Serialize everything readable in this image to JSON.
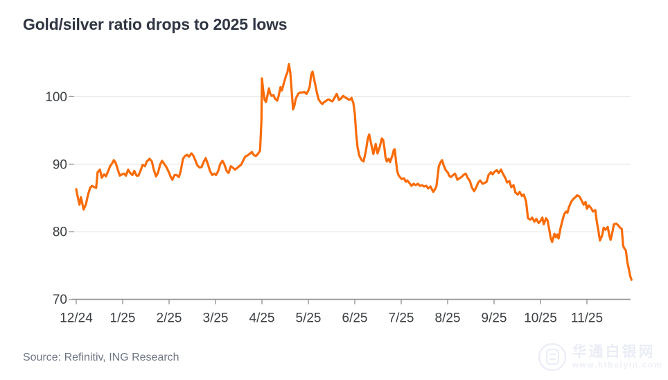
{
  "header": {
    "title": "Gold/silver ratio drops to 2025 lows"
  },
  "footer": {
    "source": "Source: Refinitiv, ING Research"
  },
  "watermark": {
    "logo": "circle-monogram-icon",
    "site_name": "华通白银网",
    "site_url": "www.htbaiyin.com"
  },
  "colors": {
    "line": "#f96b07",
    "title_text": "#2f3542",
    "tick_text": "#3c4043",
    "grid": "#e0e0e0",
    "axis": "#9b9b9b",
    "source_text": "#6e7684",
    "watermark": "#eaedf6"
  },
  "chart_data": {
    "type": "line",
    "title": "Gold/silver ratio drops to 2025 lows",
    "series_name": "Gold/silver ratio",
    "x_unit": "months since December 2024",
    "grid": true,
    "legend": "none",
    "y_ticks": [
      70,
      80,
      90,
      100
    ],
    "ylim": [
      70,
      106.5
    ],
    "x_tick_labels": [
      "12/24",
      "1/25",
      "2/25",
      "3/25",
      "4/25",
      "5/25",
      "6/25",
      "7/25",
      "8/25",
      "9/25",
      "10/25",
      "11/25"
    ],
    "points": [
      [
        0,
        86.3
      ],
      [
        0.04,
        84.9
      ],
      [
        0.07,
        84
      ],
      [
        0.1,
        85.1
      ],
      [
        0.13,
        84.2
      ],
      [
        0.16,
        83.3
      ],
      [
        0.21,
        84.1
      ],
      [
        0.25,
        85.4
      ],
      [
        0.3,
        86.5
      ],
      [
        0.34,
        86.8
      ],
      [
        0.39,
        86.6
      ],
      [
        0.43,
        86.5
      ],
      [
        0.46,
        88.8
      ],
      [
        0.51,
        89.2
      ],
      [
        0.55,
        88
      ],
      [
        0.6,
        88.5
      ],
      [
        0.64,
        88.2
      ],
      [
        0.69,
        89
      ],
      [
        0.73,
        89.7
      ],
      [
        0.78,
        90.2
      ],
      [
        0.81,
        90.6
      ],
      [
        0.85,
        90.2
      ],
      [
        0.9,
        89.1
      ],
      [
        0.94,
        88.3
      ],
      [
        0.99,
        88.5
      ],
      [
        1.03,
        88.6
      ],
      [
        1.07,
        88.3
      ],
      [
        1.12,
        89.2
      ],
      [
        1.16,
        88.7
      ],
      [
        1.21,
        88.4
      ],
      [
        1.25,
        89
      ],
      [
        1.3,
        88.3
      ],
      [
        1.34,
        88.3
      ],
      [
        1.39,
        89.1
      ],
      [
        1.43,
        89.9
      ],
      [
        1.48,
        89.7
      ],
      [
        1.52,
        90.4
      ],
      [
        1.58,
        90.8
      ],
      [
        1.63,
        90.4
      ],
      [
        1.67,
        89.2
      ],
      [
        1.72,
        88.2
      ],
      [
        1.76,
        88.7
      ],
      [
        1.81,
        90
      ],
      [
        1.85,
        90.5
      ],
      [
        1.9,
        90
      ],
      [
        1.94,
        89.6
      ],
      [
        1.99,
        88.9
      ],
      [
        2.03,
        88.2
      ],
      [
        2.07,
        87.7
      ],
      [
        2.12,
        88.4
      ],
      [
        2.16,
        88.4
      ],
      [
        2.21,
        88.1
      ],
      [
        2.25,
        89
      ],
      [
        2.3,
        90.8
      ],
      [
        2.34,
        91.2
      ],
      [
        2.39,
        91.4
      ],
      [
        2.43,
        91.1
      ],
      [
        2.48,
        91.6
      ],
      [
        2.52,
        91.3
      ],
      [
        2.57,
        90.5
      ],
      [
        2.61,
        89.8
      ],
      [
        2.66,
        89.5
      ],
      [
        2.7,
        89.6
      ],
      [
        2.75,
        90.4
      ],
      [
        2.79,
        90.9
      ],
      [
        2.84,
        89.9
      ],
      [
        2.88,
        89
      ],
      [
        2.93,
        88.4
      ],
      [
        2.97,
        88.6
      ],
      [
        3.01,
        88.4
      ],
      [
        3.06,
        89
      ],
      [
        3.1,
        90
      ],
      [
        3.15,
        90.5
      ],
      [
        3.19,
        90
      ],
      [
        3.24,
        89
      ],
      [
        3.28,
        88.7
      ],
      [
        3.33,
        89.7
      ],
      [
        3.37,
        89.5
      ],
      [
        3.42,
        89.2
      ],
      [
        3.46,
        89.4
      ],
      [
        3.51,
        89.7
      ],
      [
        3.55,
        89.9
      ],
      [
        3.6,
        90.6
      ],
      [
        3.64,
        91.1
      ],
      [
        3.69,
        91.3
      ],
      [
        3.73,
        91.5
      ],
      [
        3.78,
        91.8
      ],
      [
        3.82,
        91.4
      ],
      [
        3.87,
        91.2
      ],
      [
        3.91,
        91.5
      ],
      [
        3.96,
        92
      ],
      [
        3.99,
        96.5
      ],
      [
        4,
        102.7
      ],
      [
        4.03,
        100.8
      ],
      [
        4.06,
        99.5
      ],
      [
        4.09,
        99.2
      ],
      [
        4.12,
        100.2
      ],
      [
        4.15,
        101.2
      ],
      [
        4.18,
        100.4
      ],
      [
        4.21,
        100.1
      ],
      [
        4.25,
        100.2
      ],
      [
        4.28,
        99.7
      ],
      [
        4.33,
        99.4
      ],
      [
        4.36,
        100.1
      ],
      [
        4.4,
        101.4
      ],
      [
        4.43,
        100.9
      ],
      [
        4.48,
        102.2
      ],
      [
        4.52,
        103.1
      ],
      [
        4.55,
        103.6
      ],
      [
        4.58,
        104.8
      ],
      [
        4.61,
        103.6
      ],
      [
        4.64,
        100.9
      ],
      [
        4.67,
        98.1
      ],
      [
        4.7,
        98.7
      ],
      [
        4.73,
        99.7
      ],
      [
        4.78,
        100.4
      ],
      [
        4.82,
        100.6
      ],
      [
        4.87,
        100.6
      ],
      [
        4.91,
        100.7
      ],
      [
        4.96,
        100.4
      ],
      [
        5,
        100.9
      ],
      [
        5.03,
        101.5
      ],
      [
        5.06,
        103.2
      ],
      [
        5.09,
        103.7
      ],
      [
        5.13,
        102.4
      ],
      [
        5.18,
        100.7
      ],
      [
        5.22,
        99.6
      ],
      [
        5.27,
        99.1
      ],
      [
        5.3,
        98.9
      ],
      [
        5.34,
        99.2
      ],
      [
        5.39,
        99.4
      ],
      [
        5.43,
        99.6
      ],
      [
        5.48,
        99.4
      ],
      [
        5.52,
        99.3
      ],
      [
        5.57,
        99.9
      ],
      [
        5.61,
        100.4
      ],
      [
        5.66,
        99.5
      ],
      [
        5.7,
        99.7
      ],
      [
        5.75,
        100.1
      ],
      [
        5.79,
        99.9
      ],
      [
        5.84,
        99.7
      ],
      [
        5.88,
        99.5
      ],
      [
        5.93,
        99.8
      ],
      [
        5.97,
        99
      ],
      [
        6,
        97.5
      ],
      [
        6.03,
        94.5
      ],
      [
        6.06,
        92.5
      ],
      [
        6.1,
        91.2
      ],
      [
        6.15,
        90.6
      ],
      [
        6.19,
        90.4
      ],
      [
        6.24,
        92
      ],
      [
        6.28,
        93.8
      ],
      [
        6.31,
        94.4
      ],
      [
        6.36,
        92.8
      ],
      [
        6.4,
        91.5
      ],
      [
        6.45,
        93
      ],
      [
        6.49,
        91.6
      ],
      [
        6.54,
        92.6
      ],
      [
        6.58,
        93.8
      ],
      [
        6.61,
        93.6
      ],
      [
        6.64,
        92.3
      ],
      [
        6.66,
        91.1
      ],
      [
        6.69,
        90.4
      ],
      [
        6.73,
        90.8
      ],
      [
        6.76,
        90.3
      ],
      [
        6.81,
        91.3
      ],
      [
        6.84,
        92.1
      ],
      [
        6.86,
        92.2
      ],
      [
        6.91,
        89.1
      ],
      [
        6.94,
        88.4
      ],
      [
        6.97,
        88.1
      ],
      [
        7.01,
        87.8
      ],
      [
        7.06,
        87.9
      ],
      [
        7.1,
        87.4
      ],
      [
        7.13,
        87.6
      ],
      [
        7.19,
        87.1
      ],
      [
        7.22,
        86.8
      ],
      [
        7.27,
        87.1
      ],
      [
        7.31,
        86.9
      ],
      [
        7.36,
        87.1
      ],
      [
        7.4,
        86.8
      ],
      [
        7.45,
        86.9
      ],
      [
        7.49,
        86.7
      ],
      [
        7.54,
        86.8
      ],
      [
        7.58,
        86.4
      ],
      [
        7.63,
        86.7
      ],
      [
        7.69,
        85.9
      ],
      [
        7.73,
        86.3
      ],
      [
        7.76,
        86.8
      ],
      [
        7.81,
        89.7
      ],
      [
        7.85,
        90.3
      ],
      [
        7.88,
        90.6
      ],
      [
        7.91,
        89.9
      ],
      [
        7.96,
        89.1
      ],
      [
        8.01,
        88.7
      ],
      [
        8.03,
        88.3
      ],
      [
        8.07,
        88.1
      ],
      [
        8.12,
        88.4
      ],
      [
        8.16,
        88.6
      ],
      [
        8.21,
        87.7
      ],
      [
        8.25,
        87.9
      ],
      [
        8.3,
        88.1
      ],
      [
        8.34,
        88.4
      ],
      [
        8.39,
        88.6
      ],
      [
        8.43,
        88
      ],
      [
        8.48,
        87.5
      ],
      [
        8.52,
        86.6
      ],
      [
        8.57,
        86
      ],
      [
        8.61,
        86.5
      ],
      [
        8.66,
        87.3
      ],
      [
        8.7,
        87.6
      ],
      [
        8.75,
        87.1
      ],
      [
        8.79,
        87.2
      ],
      [
        8.84,
        87.4
      ],
      [
        8.88,
        88.4
      ],
      [
        8.93,
        88.8
      ],
      [
        8.97,
        88.5
      ],
      [
        9.01,
        88.9
      ],
      [
        9.06,
        89.1
      ],
      [
        9.1,
        88.7
      ],
      [
        9.15,
        89.2
      ],
      [
        9.19,
        88.6
      ],
      [
        9.24,
        88
      ],
      [
        9.28,
        87.3
      ],
      [
        9.33,
        87.5
      ],
      [
        9.37,
        86.6
      ],
      [
        9.42,
        86.9
      ],
      [
        9.46,
        85.8
      ],
      [
        9.51,
        85.5
      ],
      [
        9.55,
        85.9
      ],
      [
        9.6,
        85.3
      ],
      [
        9.64,
        85.5
      ],
      [
        9.69,
        84.5
      ],
      [
        9.73,
        82
      ],
      [
        9.78,
        81.8
      ],
      [
        9.82,
        82.1
      ],
      [
        9.87,
        81.5
      ],
      [
        9.91,
        81.9
      ],
      [
        9.96,
        81.3
      ],
      [
        10,
        81.6
      ],
      [
        10.04,
        82.1
      ],
      [
        10.07,
        81.1
      ],
      [
        10.12,
        82
      ],
      [
        10.15,
        81.7
      ],
      [
        10.19,
        80.3
      ],
      [
        10.22,
        79.1
      ],
      [
        10.25,
        78.5
      ],
      [
        10.3,
        79.7
      ],
      [
        10.33,
        79.2
      ],
      [
        10.36,
        79.6
      ],
      [
        10.39,
        79
      ],
      [
        10.43,
        80.5
      ],
      [
        10.48,
        81.9
      ],
      [
        10.51,
        82.6
      ],
      [
        10.55,
        83
      ],
      [
        10.58,
        82.8
      ],
      [
        10.61,
        83.6
      ],
      [
        10.66,
        84.4
      ],
      [
        10.7,
        84.8
      ],
      [
        10.75,
        85.1
      ],
      [
        10.79,
        85.4
      ],
      [
        10.84,
        85.2
      ],
      [
        10.88,
        84.7
      ],
      [
        10.93,
        84
      ],
      [
        10.97,
        84.4
      ],
      [
        11,
        83.4
      ],
      [
        11.04,
        83.9
      ],
      [
        11.09,
        83.5
      ],
      [
        11.13,
        83
      ],
      [
        11.18,
        83.2
      ],
      [
        11.21,
        81.6
      ],
      [
        11.25,
        80
      ],
      [
        11.28,
        78.7
      ],
      [
        11.33,
        79.5
      ],
      [
        11.36,
        80.6
      ],
      [
        11.4,
        80.3
      ],
      [
        11.45,
        80.7
      ],
      [
        11.48,
        79.5
      ],
      [
        11.51,
        78.8
      ],
      [
        11.55,
        80
      ],
      [
        11.58,
        81.1
      ],
      [
        11.63,
        81.2
      ],
      [
        11.67,
        81
      ],
      [
        11.7,
        80.7
      ],
      [
        11.75,
        80.4
      ],
      [
        11.78,
        77.9
      ],
      [
        11.81,
        77.5
      ],
      [
        11.84,
        77.2
      ],
      [
        11.87,
        75.5
      ],
      [
        11.9,
        74.6
      ],
      [
        11.93,
        73.5
      ],
      [
        11.96,
        72.9
      ]
    ]
  }
}
